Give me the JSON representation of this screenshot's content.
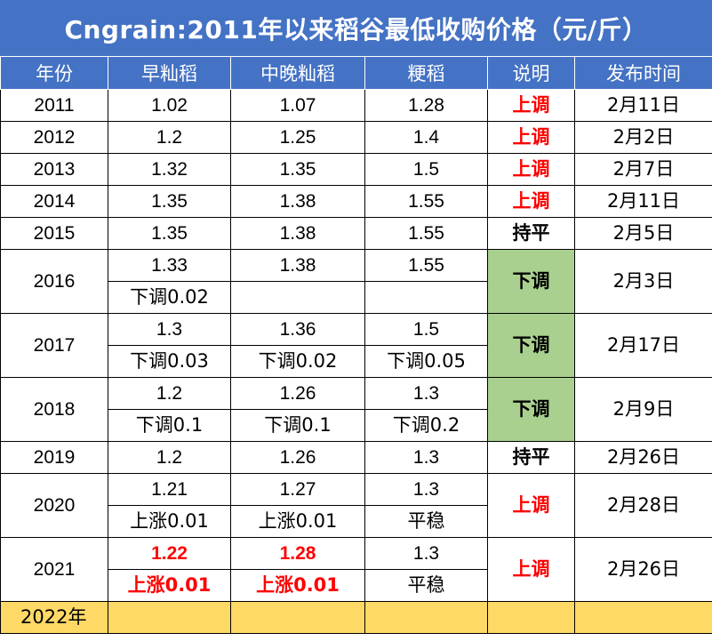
{
  "title": "Cngrain:2011年以来稻谷最低收购价格（元/斤）",
  "headers": [
    "年份",
    "早籼稻",
    "中晚籼稻",
    "粳稻",
    "说明",
    "发布时间"
  ],
  "rows": {
    "r2011": {
      "year": "2011",
      "early": "1.02",
      "mid": "1.07",
      "japonica": "1.28",
      "note": "上调",
      "date": "2月11日"
    },
    "r2012": {
      "year": "2012",
      "early": "1.2",
      "mid": "1.25",
      "japonica": "1.4",
      "note": "上调",
      "date": "2月2日"
    },
    "r2013": {
      "year": "2013",
      "early": "1.32",
      "mid": "1.35",
      "japonica": "1.5",
      "note": "上调",
      "date": "2月7日"
    },
    "r2014": {
      "year": "2014",
      "early": "1.35",
      "mid": "1.38",
      "japonica": "1.55",
      "note": "上调",
      "date": "2月11日"
    },
    "r2015": {
      "year": "2015",
      "early": "1.35",
      "mid": "1.38",
      "japonica": "1.55",
      "note": "持平",
      "date": "2月5日"
    },
    "r2016": {
      "year": "2016",
      "early": "1.33",
      "mid": "1.38",
      "japonica": "1.55",
      "early_change": "下调0.02",
      "mid_change": "",
      "japonica_change": "",
      "note": "下调",
      "date": "2月3日"
    },
    "r2017": {
      "year": "2017",
      "early": "1.3",
      "mid": "1.36",
      "japonica": "1.5",
      "early_change": "下调0.03",
      "mid_change": "下调0.02",
      "japonica_change": "下调0.05",
      "note": "下调",
      "date": "2月17日"
    },
    "r2018": {
      "year": "2018",
      "early": "1.2",
      "mid": "1.26",
      "japonica": "1.3",
      "early_change": "下调0.1",
      "mid_change": "下调0.1",
      "japonica_change": "下调0.2",
      "note": "下调",
      "date": "2月9日"
    },
    "r2019": {
      "year": "2019",
      "early": "1.2",
      "mid": "1.26",
      "japonica": "1.3",
      "note": "持平",
      "date": "2月26日"
    },
    "r2020": {
      "year": "2020",
      "early": "1.21",
      "mid": "1.27",
      "japonica": "1.3",
      "early_change": "上涨0.01",
      "mid_change": "上涨0.01",
      "japonica_change": "平稳",
      "note": "上调",
      "date": "2月28日"
    },
    "r2021": {
      "year": "2021",
      "early": "1.22",
      "mid": "1.28",
      "japonica": "1.3",
      "early_change": "上涨0.01",
      "mid_change": "上涨0.01",
      "japonica_change": "平稳",
      "note": "上调",
      "date": "2月26日"
    },
    "r2022": {
      "year": "2022年"
    }
  },
  "colors": {
    "header_bg": "#4472c4",
    "raise_text": "#ff0000",
    "cut_bg": "#a9d08e",
    "pending_row_bg": "#ffd966"
  }
}
